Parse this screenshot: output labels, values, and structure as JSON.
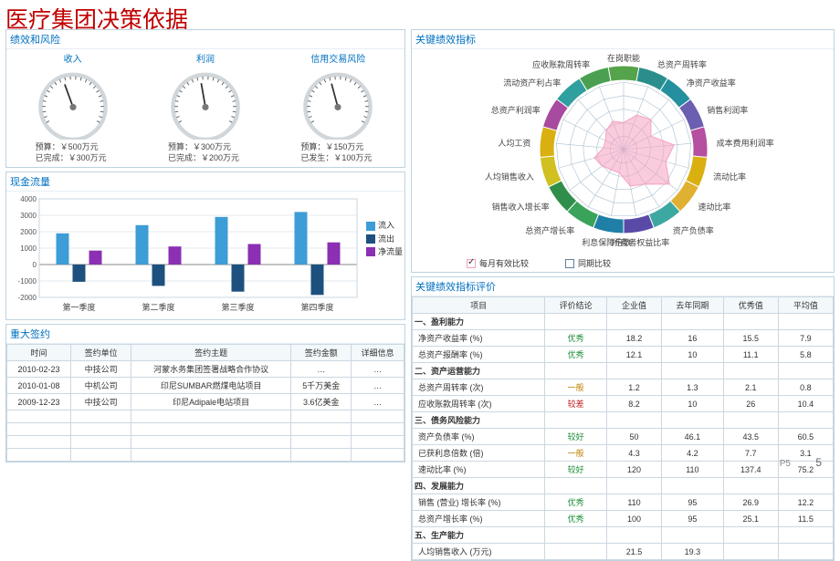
{
  "page": {
    "title": "医疗集团决策依据",
    "number": "5",
    "badge": "P5"
  },
  "performance": {
    "title": "绩效和风险",
    "gauges": [
      {
        "label": "收入",
        "budget_line": "预算：￥500万元",
        "actual_line": "已完成：￥300万元",
        "angle": -20
      },
      {
        "label": "利润",
        "budget_line": "预算：￥300万元",
        "actual_line": "已完成：￥200万元",
        "angle": -10
      },
      {
        "label": "信用交易风险",
        "budget_line": "预算：￥150万元",
        "actual_line": "已发生：￥100万元",
        "angle": -15
      }
    ],
    "gauge_colors": {
      "rim": "#d0d6da",
      "tick": "#555555",
      "needle": "#333333",
      "hub": "#777777"
    }
  },
  "cashflow": {
    "title": "现金流量",
    "ylim": [
      -2000,
      4000
    ],
    "ytick_step": 1000,
    "categories": [
      "第一季度",
      "第二季度",
      "第三季度",
      "第四季度"
    ],
    "series": [
      {
        "name": "流入",
        "color": "#3d9dd6",
        "values": [
          1900,
          2400,
          2900,
          3200
        ]
      },
      {
        "name": "流出",
        "color": "#1d507e",
        "values": [
          -1050,
          -1300,
          -1650,
          -1850
        ]
      },
      {
        "name": "净流量",
        "color": "#8b2fb3",
        "values": [
          850,
          1100,
          1250,
          1350
        ]
      }
    ],
    "grid_color": "#c7d7e2",
    "background_color": "#ffffff"
  },
  "contracts": {
    "title": "重大签约",
    "columns": [
      "时间",
      "签约单位",
      "签约主题",
      "签约金额",
      "详细信息"
    ],
    "col_widths": [
      "68px",
      "64px",
      "170px",
      "64px",
      "56px"
    ],
    "rows": [
      [
        "2010-02-23",
        "中技公司",
        "河蒙水务集团签署战略合作协议",
        "…",
        "…"
      ],
      [
        "2010-01-08",
        "中机公司",
        "印尼SUMBAR燃煤电站项目",
        "5千万美金",
        "…"
      ],
      [
        "2009-12-23",
        "中技公司",
        "印尼Adipale电站项目",
        "3.6亿美金",
        "…"
      ]
    ],
    "empty_rows": 4
  },
  "kpi_radar": {
    "title": "关键绩效指标",
    "axes": [
      "在岗职能",
      "总资产周转率",
      "净资产收益率",
      "销售利润率",
      "成本费用利润率",
      "流动比率",
      "速动比率",
      "资产负债率",
      "所有者权益比率",
      "利息保障倍数",
      "总资产增长率",
      "销售收入增长率",
      "人均销售收入",
      "人均工资",
      "总资产利润率",
      "流动资产利占率",
      "应收账款周转率"
    ],
    "series": [
      {
        "name": "每月有效比较",
        "color": "#f5a0c0",
        "fill_opacity": 0.55,
        "values": [
          0.4,
          0.55,
          0.6,
          0.45,
          0.75,
          0.65,
          0.85,
          0.6,
          0.55,
          0.35,
          0.35,
          0.4,
          0.45,
          0.3,
          0.3,
          0.38,
          0.45
        ]
      }
    ],
    "ring_colors": [
      "#55a34a",
      "#2a8f8c",
      "#238f9f",
      "#6a5fb0",
      "#b54fa0",
      "#d9b00f",
      "#e0b030",
      "#3da8a2",
      "#5a4aa8",
      "#1f7fa6",
      "#3aa35a",
      "#2f8f4a",
      "#d0c020",
      "#d9b010",
      "#a84aa0",
      "#2f9f9f",
      "#4aa050"
    ],
    "grid_color": "#aabfd0",
    "legend": [
      {
        "label": "每月有效比较",
        "swatch": "#f5a0c0",
        "checked": true
      },
      {
        "label": "同期比较",
        "swatch": "#5f7fa0",
        "checked": false
      }
    ]
  },
  "kpi_table": {
    "title": "关键绩效指标评价",
    "columns": [
      "项目",
      "评价结论",
      "企业值",
      "去年同期",
      "优秀值",
      "平均值"
    ],
    "col_widths": [
      "116px",
      "54px",
      "48px",
      "54px",
      "48px",
      "48px"
    ],
    "groups": [
      {
        "section": "一、盈利能力",
        "rows": [
          [
            "净资产收益率 (%)",
            "优秀",
            "18.2",
            "16",
            "15.5",
            "7.9"
          ],
          [
            "总资产报酬率 (%)",
            "优秀",
            "12.1",
            "10",
            "11.1",
            "5.8"
          ]
        ]
      },
      {
        "section": "二、资产运营能力",
        "rows": [
          [
            "总资产周转率 (次)",
            "一般",
            "1.2",
            "1.3",
            "2.1",
            "0.8"
          ],
          [
            "应收账款周转率 (次)",
            "较差",
            "8.2",
            "10",
            "26",
            "10.4"
          ]
        ]
      },
      {
        "section": "三、债务风险能力",
        "rows": [
          [
            "资产负债率 (%)",
            "较好",
            "50",
            "46.1",
            "43.5",
            "60.5"
          ],
          [
            "已获利息倍数 (倍)",
            "一般",
            "4.3",
            "4.2",
            "7.7",
            "3.1"
          ],
          [
            "速动比率 (%)",
            "较好",
            "120",
            "110",
            "137.4",
            "75.2"
          ]
        ]
      },
      {
        "section": "四、发展能力",
        "rows": [
          [
            "销售 (营业) 增长率 (%)",
            "优秀",
            "110",
            "95",
            "26.9",
            "12.2"
          ],
          [
            "总资产增长率 (%)",
            "优秀",
            "100",
            "95",
            "25.1",
            "11.5"
          ]
        ]
      },
      {
        "section": "五、生产能力",
        "rows": [
          [
            "人均销售收入 (万元)",
            "",
            "21.5",
            "19.3",
            "",
            ""
          ]
        ]
      }
    ],
    "eval_colors": {
      "优秀": "#1f8f3a",
      "较好": "#1f8f3a",
      "一般": "#c08000",
      "较差": "#c02020"
    }
  }
}
